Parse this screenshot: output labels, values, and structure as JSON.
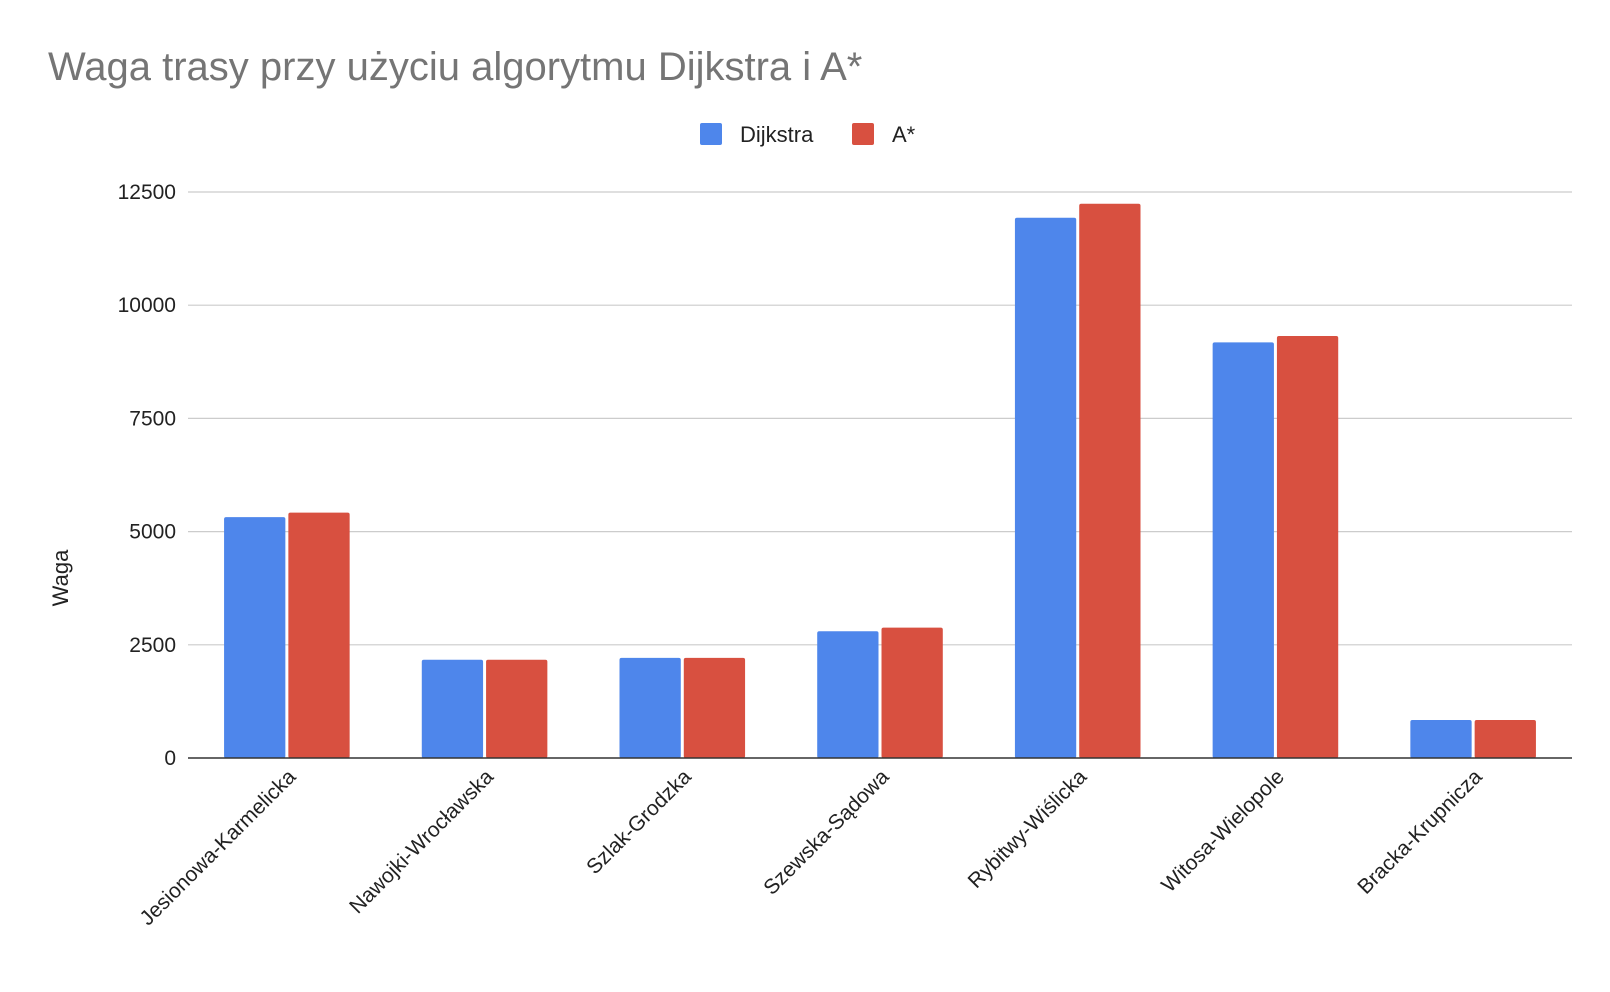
{
  "chart_data": {
    "type": "bar",
    "title": "Waga trasy przy użyciu algorytmu Dijkstra i A*",
    "xlabel": "",
    "ylabel": "Waga",
    "ylim": [
      0,
      12500
    ],
    "yticks": [
      "0",
      "2500",
      "5000",
      "7500",
      "10000",
      "12500"
    ],
    "grid": true,
    "legend_position": "top",
    "categories": [
      "Jesionowa-Karmelicka",
      "Nawojki-Wrocławska",
      "Szlak-Grodzka",
      "Szewska-Sądowa",
      "Rybitwy-Wiślicka",
      "Witosa-Wielopole",
      "Bracka-Krupnicza"
    ],
    "series": [
      {
        "name": "Dijkstra",
        "color": "#4E86EB",
        "values": [
          5320,
          2170,
          2210,
          2800,
          11930,
          9180,
          840
        ]
      },
      {
        "name": "A*",
        "color": "#D85040",
        "values": [
          5420,
          2170,
          2210,
          2880,
          12240,
          9320,
          840
        ]
      }
    ]
  }
}
